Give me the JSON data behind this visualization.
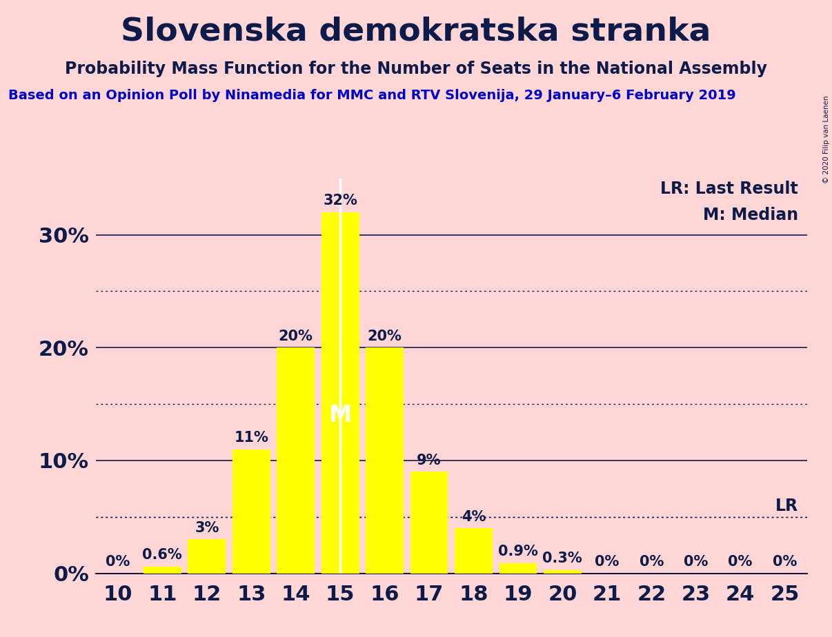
{
  "title": "Slovenska demokratska stranka",
  "subtitle": "Probability Mass Function for the Number of Seats in the National Assembly",
  "source": "Based on an Opinion Poll by Ninamedia for MMC and RTV Slovenija, 29 January–6 February 2019",
  "copyright": "© 2020 Filip van Laenen",
  "seats": [
    10,
    11,
    12,
    13,
    14,
    15,
    16,
    17,
    18,
    19,
    20,
    21,
    22,
    23,
    24,
    25
  ],
  "probabilities": [
    0.0,
    0.6,
    3.0,
    11.0,
    20.0,
    32.0,
    20.0,
    9.0,
    4.0,
    0.9,
    0.3,
    0.0,
    0.0,
    0.0,
    0.0,
    0.0
  ],
  "bar_color": "#ffff00",
  "background_color": "#ffd6d6",
  "text_color": "#0d1b4b",
  "source_color": "#0000cc",
  "median_seat": 15,
  "lr_value": 5.0,
  "yticks": [
    0,
    10,
    20,
    30
  ],
  "ytick_labels": [
    "0%",
    "10%",
    "20%",
    "30%"
  ],
  "dotted_yticks": [
    5,
    15,
    25
  ],
  "xmin": 9.5,
  "xmax": 25.5,
  "ymin": 0,
  "ymax": 35,
  "title_fontsize": 34,
  "subtitle_fontsize": 17,
  "source_fontsize": 14,
  "bar_label_fontsize": 15,
  "axis_fontsize": 22,
  "legend_fontsize": 17,
  "median_label_fontsize": 24
}
